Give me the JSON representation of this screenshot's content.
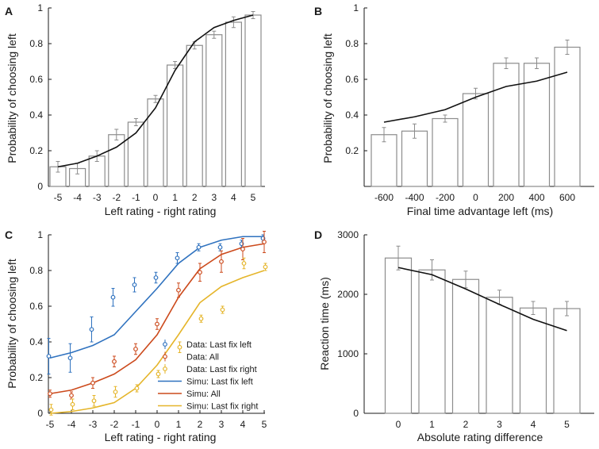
{
  "colors": {
    "axis": "#1a1a1a",
    "bar_edge": "#8c8c8c",
    "errorbar": "#8c8c8c",
    "model_line": "#111111",
    "blue": "#2f72bf",
    "red": "#cc4a1c",
    "yellow": "#e5b52a"
  },
  "chart_data": [
    {
      "panel_label": "A",
      "type": "bar",
      "xlabel": "Left rating - right rating",
      "ylabel": "Probability of choosing left",
      "ylim": [
        0,
        1
      ],
      "yticks": [
        0,
        0.2,
        0.4,
        0.6,
        0.8,
        1
      ],
      "ytick_labels": [
        "0",
        "0.2",
        "0.4",
        "0.6",
        "0.8",
        "1"
      ],
      "categories": [
        "-5",
        "-4",
        "-3",
        "-2",
        "-1",
        "0",
        "1",
        "2",
        "3",
        "4",
        "5"
      ],
      "values": [
        0.11,
        0.1,
        0.17,
        0.29,
        0.36,
        0.49,
        0.68,
        0.79,
        0.85,
        0.92,
        0.96
      ],
      "errors": [
        0.03,
        0.03,
        0.03,
        0.03,
        0.02,
        0.02,
        0.02,
        0.02,
        0.02,
        0.03,
        0.02
      ],
      "model_line": [
        0.11,
        0.13,
        0.17,
        0.22,
        0.3,
        0.44,
        0.65,
        0.81,
        0.89,
        0.93,
        0.96
      ]
    },
    {
      "panel_label": "B",
      "type": "bar",
      "xlabel": "Final time advantage left (ms)",
      "ylabel": "Probability of choosing left",
      "ylim": [
        0,
        1
      ],
      "yticks": [
        0.2,
        0.4,
        0.6,
        0.8,
        1
      ],
      "ytick_labels": [
        "0.2",
        "0.4",
        "0.6",
        "0.8",
        "1"
      ],
      "categories": [
        "-600",
        "-400",
        "-200",
        "0",
        "200",
        "400",
        "600"
      ],
      "values": [
        0.29,
        0.31,
        0.38,
        0.52,
        0.69,
        0.69,
        0.78
      ],
      "errors": [
        0.04,
        0.04,
        0.02,
        0.03,
        0.03,
        0.03,
        0.04
      ],
      "model_line": [
        0.36,
        0.39,
        0.43,
        0.5,
        0.56,
        0.59,
        0.64
      ]
    },
    {
      "panel_label": "C",
      "type": "line",
      "xlabel": "Left rating - right rating",
      "ylabel": "Probability of choosing left",
      "ylim": [
        0,
        1
      ],
      "yticks": [
        0,
        0.2,
        0.4,
        0.6,
        0.8,
        1
      ],
      "ytick_labels": [
        "0",
        "0.2",
        "0.4",
        "0.6",
        "0.8",
        "1"
      ],
      "x": [
        -5,
        -4,
        -3,
        -2,
        -1,
        0,
        1,
        2,
        3,
        4,
        5
      ],
      "xtick_labels": [
        "-5",
        "-4",
        "-3",
        "-2",
        "-1",
        "0",
        "1",
        "2",
        "3",
        "4",
        "5"
      ],
      "legend_position": "bottom-right",
      "series": [
        {
          "name": "Data: Last fix left",
          "kind": "points",
          "color_key": "blue",
          "values": [
            0.32,
            0.31,
            0.47,
            0.65,
            0.72,
            0.76,
            0.87,
            0.93,
            0.93,
            0.95,
            0.98
          ],
          "errors": [
            0.1,
            0.08,
            0.07,
            0.05,
            0.04,
            0.03,
            0.03,
            0.02,
            0.02,
            0.02,
            0.02
          ]
        },
        {
          "name": "Data: All",
          "kind": "points",
          "color_key": "red",
          "values": [
            0.11,
            0.1,
            0.17,
            0.29,
            0.36,
            0.5,
            0.69,
            0.79,
            0.85,
            0.92,
            0.96
          ],
          "errors": [
            0.02,
            0.02,
            0.03,
            0.03,
            0.03,
            0.03,
            0.04,
            0.05,
            0.06,
            0.06,
            0.06
          ]
        },
        {
          "name": "Data: Last fix right",
          "kind": "points",
          "color_key": "yellow",
          "values": [
            0.02,
            0.05,
            0.07,
            0.12,
            0.14,
            0.22,
            0.37,
            0.53,
            0.58,
            0.84,
            0.82
          ],
          "errors": [
            0.03,
            0.03,
            0.03,
            0.03,
            0.02,
            0.02,
            0.03,
            0.02,
            0.02,
            0.03,
            0.02
          ]
        },
        {
          "name": "Simu: Last fix left",
          "kind": "line",
          "color_key": "blue",
          "values": [
            0.31,
            0.34,
            0.38,
            0.44,
            0.57,
            0.7,
            0.84,
            0.93,
            0.97,
            0.99,
            0.99
          ]
        },
        {
          "name": "Simu: All",
          "kind": "line",
          "color_key": "red",
          "values": [
            0.11,
            0.13,
            0.17,
            0.22,
            0.3,
            0.44,
            0.65,
            0.81,
            0.89,
            0.93,
            0.95
          ]
        },
        {
          "name": "Simu: Last fix right",
          "kind": "line",
          "color_key": "yellow",
          "values": [
            0.0,
            0.01,
            0.03,
            0.06,
            0.14,
            0.27,
            0.44,
            0.62,
            0.71,
            0.76,
            0.8
          ]
        }
      ]
    },
    {
      "panel_label": "D",
      "type": "bar",
      "xlabel": "Absolute rating difference",
      "ylabel": "Reaction time (ms)",
      "ylim": [
        0,
        3000
      ],
      "yticks": [
        0,
        1000,
        2000,
        3000
      ],
      "ytick_labels": [
        "0",
        "1000",
        "2000",
        "3000"
      ],
      "categories": [
        "0",
        "1",
        "2",
        "3",
        "4",
        "5"
      ],
      "values": [
        2610,
        2410,
        2250,
        1950,
        1770,
        1760
      ],
      "errors": [
        200,
        170,
        140,
        120,
        110,
        120
      ],
      "model_line": [
        2450,
        2330,
        2090,
        1830,
        1580,
        1390
      ]
    }
  ]
}
